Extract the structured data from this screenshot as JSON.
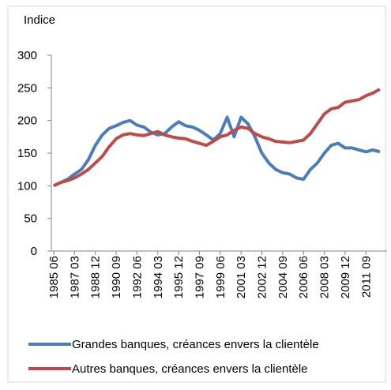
{
  "chart_data": {
    "type": "line",
    "ylabel": "Indice",
    "categories": [
      "1985 06",
      null,
      null,
      "1987 03",
      null,
      null,
      "1988 12",
      null,
      null,
      "1990 09",
      null,
      null,
      "1992 06",
      null,
      null,
      "1994 03",
      null,
      null,
      "1995 12",
      null,
      null,
      "1997 09",
      null,
      null,
      "1999 06",
      null,
      null,
      "2001 03",
      null,
      null,
      "2002 12",
      null,
      null,
      "2004 09",
      null,
      null,
      "2006 06",
      null,
      null,
      "2008 03",
      null,
      null,
      "2009 12",
      null,
      null,
      "2011 09",
      null,
      null
    ],
    "series": [
      {
        "name": "Grandes banques, créances envers la clientèle",
        "color": "#4a7ebb",
        "values": [
          100,
          105,
          110,
          118,
          125,
          140,
          162,
          178,
          188,
          192,
          197,
          200,
          193,
          190,
          182,
          178,
          180,
          190,
          198,
          192,
          190,
          185,
          178,
          170,
          180,
          205,
          175,
          205,
          195,
          175,
          150,
          135,
          125,
          120,
          118,
          112,
          110,
          125,
          135,
          150,
          162,
          165,
          158,
          158,
          155,
          152,
          155,
          152
        ]
      },
      {
        "name": "Autres banques, créances envers la clientèle",
        "color": "#be4b48",
        "values": [
          100,
          105,
          108,
          112,
          118,
          125,
          135,
          145,
          160,
          172,
          178,
          180,
          178,
          177,
          180,
          183,
          178,
          175,
          173,
          172,
          168,
          165,
          162,
          168,
          175,
          178,
          185,
          190,
          188,
          180,
          175,
          172,
          168,
          167,
          166,
          168,
          170,
          180,
          195,
          210,
          218,
          220,
          228,
          230,
          232,
          238,
          242,
          248
        ]
      }
    ],
    "ylim": [
      0,
      300
    ],
    "yticks": [
      0,
      50,
      100,
      150,
      200,
      250,
      300
    ]
  }
}
